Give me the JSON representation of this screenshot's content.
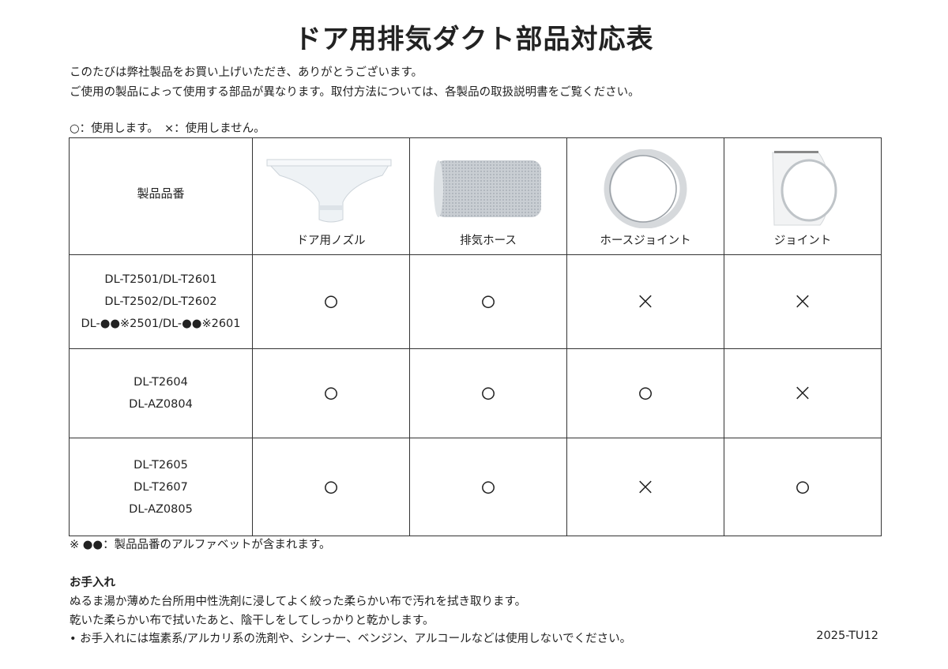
{
  "title": "ドア用排気ダクト部品対応表",
  "intro": [
    "このたびは弊社製品をお買い上げいただき、ありがとうございます。",
    "ご使用の製品によって使用する部品が異なります。取付方法については、各製品の取扱説明書をご覧ください。"
  ],
  "legend": "○：使用します。　×：使用しません。",
  "table": {
    "model_header": "製品品番",
    "parts": [
      {
        "label": "ドア用ノズル",
        "icon": "door-nozzle-image"
      },
      {
        "label": "排気ホース",
        "icon": "exhaust-hose-image"
      },
      {
        "label": "ホースジョイント",
        "icon": "hose-joint-image"
      },
      {
        "label": "ジョイント",
        "icon": "joint-image"
      }
    ],
    "rows": [
      {
        "models": [
          "DL-T2501/DL-T2601",
          "DL-T2502/DL-T2602",
          "DL-●●※2501/DL-●●※2601"
        ],
        "marks": [
          "○",
          "○",
          "×",
          "×"
        ]
      },
      {
        "models": [
          "DL-T2604",
          "DL-AZ0804"
        ],
        "marks": [
          "○",
          "○",
          "○",
          "×"
        ]
      },
      {
        "models": [
          "DL-T2605",
          "DL-T2607",
          "DL-AZ0805"
        ],
        "marks": [
          "○",
          "○",
          "×",
          "○"
        ]
      }
    ]
  },
  "footnote": "※ ●●：製品品番のアルファベットが含まれます。",
  "care": {
    "heading": "お手入れ",
    "lines": [
      "ぬるま湯か薄めた台所用中性洗剤に浸してよく絞った柔らかい布で汚れを拭き取ります。",
      "乾いた柔らかい布で拭いたあと、陰干しをしてしっかりと乾かします。",
      "• お手入れには塩素系/アルカリ系の洗剤や、シンナー、ベンジン、アルコールなどは使用しないでください。"
    ]
  },
  "doc_code": "2025-TU12"
}
